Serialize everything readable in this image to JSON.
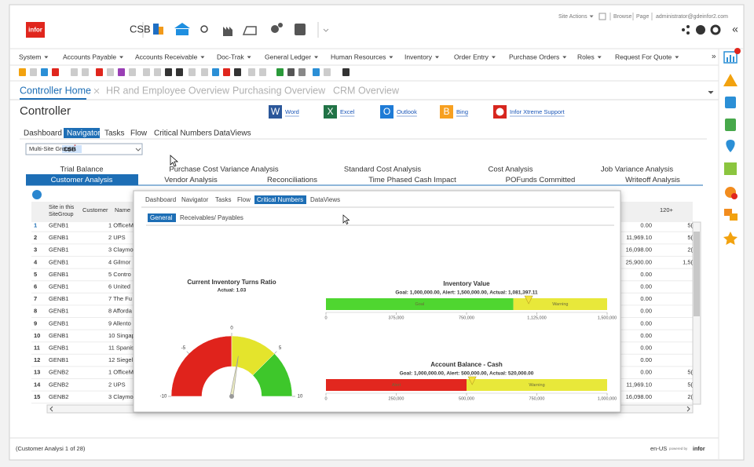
{
  "header": {
    "logo": "infor",
    "company": "CSB",
    "site_actions": "Site Actions",
    "browse": "Browse",
    "page": "Page",
    "user": "administrator@gdeinfor2.com",
    "collapse": "«"
  },
  "menu": {
    "items": [
      "System",
      "Accounts Payable",
      "Accounts Receivable",
      "Doc-Trak",
      "General Ledger",
      "Human Resources",
      "Inventory",
      "Order Entry",
      "Purchase Orders",
      "Roles",
      "Request For Quote"
    ],
    "more": "»"
  },
  "tabs": [
    "Controller Home",
    "HR and Employee Overview",
    "Purchasing Overview",
    "CRM Overview"
  ],
  "page_title": "Controller",
  "links": [
    {
      "icon": "W",
      "label": "Word"
    },
    {
      "icon": "X",
      "label": "Excel"
    },
    {
      "icon": "O",
      "label": "Outlook"
    },
    {
      "icon": "B",
      "label": "Bing"
    },
    {
      "label": "Infor Xtreme Support"
    }
  ],
  "subtabs": [
    "Dashboard",
    "Navigator",
    "Tasks",
    "Flow",
    "Critical Numbers",
    "DataViews"
  ],
  "site_group": {
    "label": "Multi-Site Group:",
    "required": "*",
    "value": "CSB"
  },
  "navigator": {
    "row1": [
      "Trial Balance",
      "Purchase Cost Variance Analysis",
      "Standard Cost Analysis",
      "Cost Analysis",
      "Job Variance Analysis"
    ],
    "row2": [
      "Customer Analysis",
      "Vendor Analysis",
      "Reconciliations",
      "Time Phased Cash Impact",
      "POFunds Committed",
      "Writeoff Analysis"
    ]
  },
  "table": {
    "site_header": [
      "Site in this",
      "SiteGroup"
    ],
    "customer_header": "Customer",
    "name_header": "Name",
    "bucket_header": "120+",
    "rows": [
      {
        "n": 1,
        "site": "GENB1",
        "customer": "1 OfficeM",
        "amount": "0.00",
        "over120": "5("
      },
      {
        "n": 2,
        "site": "GENB1",
        "customer": "2 UPS",
        "amount": "11,969.10",
        "over120": "5("
      },
      {
        "n": 3,
        "site": "GENB1",
        "customer": "3 Claymo",
        "amount": "16,098.00",
        "over120": "2("
      },
      {
        "n": 4,
        "site": "GENB1",
        "customer": "4 Gilmor",
        "amount": "25,900.00",
        "over120": "1,5("
      },
      {
        "n": 5,
        "site": "GENB1",
        "customer": "5 Contro",
        "amount": "0.00"
      },
      {
        "n": 6,
        "site": "GENB1",
        "customer": "6 United",
        "amount": "0.00"
      },
      {
        "n": 7,
        "site": "GENB1",
        "customer": "7 The Fu",
        "amount": "0.00"
      },
      {
        "n": 8,
        "site": "GENB1",
        "customer": "8 Afforda",
        "amount": "0.00"
      },
      {
        "n": 9,
        "site": "GENB1",
        "customer": "9 Allento",
        "amount": "0.00"
      },
      {
        "n": 10,
        "site": "GENB1",
        "customer": "10 Singap",
        "amount": "0.00"
      },
      {
        "n": 11,
        "site": "GENB1",
        "customer": "11 Spanis",
        "amount": "0.00"
      },
      {
        "n": 12,
        "site": "GENB1",
        "customer": "12 Siegel-",
        "amount": "0.00"
      },
      {
        "n": 13,
        "site": "GENB2",
        "customer": "1 OfficeM",
        "amount": "0.00",
        "over120": "5("
      },
      {
        "n": 14,
        "site": "GENB2",
        "customer": "2 UPS",
        "amount": "11,969.10",
        "over120": "5("
      },
      {
        "n": 15,
        "site": "GENB2",
        "customer": "3 Claymo",
        "amount": "16,098.00",
        "over120": "2("
      }
    ]
  },
  "popup": {
    "tabs": [
      "Dashboard",
      "Navigator",
      "Tasks",
      "Flow",
      "Critical Numbers",
      "DataViews"
    ],
    "subtabs": [
      "General",
      "Receivables/ Payables"
    ],
    "gauge": {
      "title": "Current Inventory Turns Ratio",
      "subtitle": "Actual: 1.03",
      "lim": [
        -10,
        10
      ],
      "ticks": [
        -10,
        -5,
        0,
        5,
        10
      ],
      "bands": [
        {
          "from": -10,
          "to": 0,
          "color": "#e0231c"
        },
        {
          "from": 0,
          "to": 5,
          "color": "#e4e42c"
        },
        {
          "from": 5,
          "to": 10,
          "color": "#3ec72b"
        }
      ],
      "value": 1.03
    },
    "bullets": [
      {
        "title": "Inventory Value",
        "subtitle": "Goal: 1,000,000.00, Alert: 1,500,000.00, Actual: 1,081,397.11",
        "xlim": [
          0,
          1500000
        ],
        "xticks": [
          0,
          {
            "value": 375000,
            "label": "375,000"
          },
          {
            "value": 750000,
            "label": "750,000"
          },
          {
            "value": 1125000,
            "label": "1,125,000"
          },
          {
            "value": 1500000,
            "label": "1,500,000"
          }
        ],
        "bands": [
          {
            "label": "Goal",
            "from": 0,
            "to": 1000000,
            "color": "#4fd630"
          },
          {
            "label": "Warning",
            "from": 1000000,
            "to": 1500000,
            "color": "#e8e83a"
          }
        ],
        "actual": 1081397.11
      },
      {
        "title": "Account Balance - Cash",
        "subtitle": "Goal: 1,000,000.00, Alert: 500,000.00, Actual: 520,000.00",
        "xlim": [
          0,
          1000000
        ],
        "xticks": [
          0,
          {
            "value": 250000,
            "label": "250,000"
          },
          {
            "value": 500000,
            "label": "500,000"
          },
          {
            "value": 750000,
            "label": "750,000"
          },
          {
            "value": 1000000,
            "label": "1,000,000"
          }
        ],
        "bands": [
          {
            "label": "Alert",
            "from": 0,
            "to": 500000,
            "color": "#e2271f"
          },
          {
            "label": "Warning",
            "from": 500000,
            "to": 1000000,
            "color": "#e8e83a"
          }
        ],
        "actual": 520000
      }
    ]
  },
  "footer": {
    "status": "(Customer Analysi 1 of 28)",
    "locale": "en-US",
    "powered": "powered by",
    "brand": "infor"
  }
}
